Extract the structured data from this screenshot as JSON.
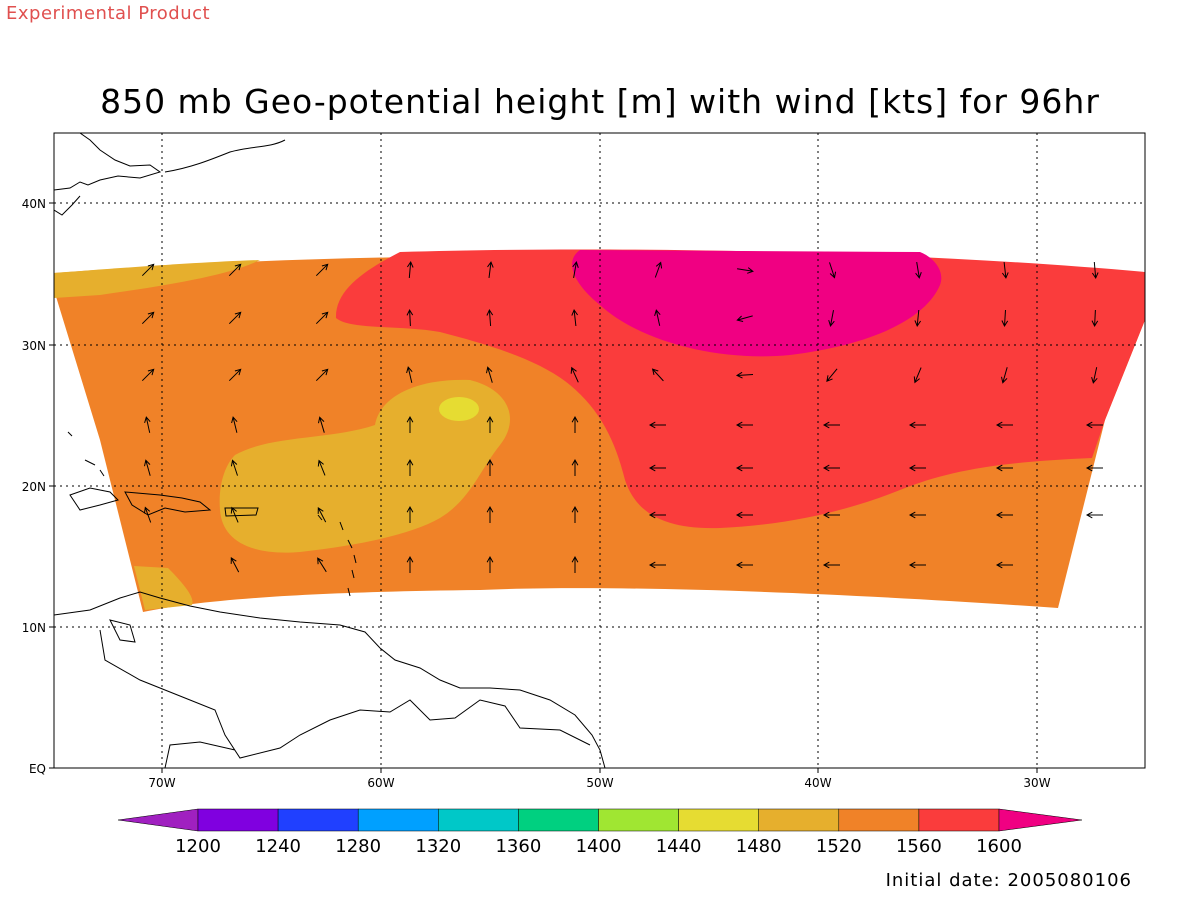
{
  "header": {
    "experimental_label": "Experimental Product",
    "title": "850 mb Geo-potential height [m] with wind [kts] for 96hr"
  },
  "footer": {
    "initial_date": "Initial date: 2005080106"
  },
  "map": {
    "lat_labels": [
      "40N",
      "30N",
      "20N",
      "10N",
      "EQ"
    ],
    "lon_labels": [
      "70W",
      "60W",
      "50W",
      "40W",
      "30W"
    ]
  },
  "colorbar": {
    "labels": [
      "1200",
      "1240",
      "1280",
      "1320",
      "1360",
      "1400",
      "1440",
      "1480",
      "1520",
      "1560",
      "1600"
    ],
    "colors": [
      "#a020c0",
      "#8000e0",
      "#2040ff",
      "#00a0ff",
      "#00c8c8",
      "#00d080",
      "#a0e632",
      "#e6dc32",
      "#e6af2d",
      "#f08228",
      "#fa3c3c",
      "#f00082"
    ]
  }
}
